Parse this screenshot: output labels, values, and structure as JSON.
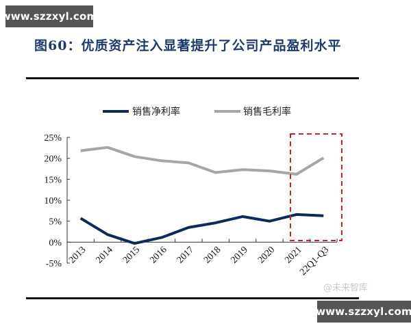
{
  "watermark": {
    "top": "www.szzxyl.com",
    "bottom": "www.szzxyl.com",
    "source": "@未来智库"
  },
  "title": "图60：优质资产注入显著提升了公司产品盈利水平",
  "colors": {
    "net_margin": "#0e2a5c",
    "gross_margin": "#a6a6a6",
    "highlight_box": "#c0242c",
    "title": "#1f3a6b"
  },
  "chart_data": {
    "type": "line",
    "title": "图60：优质资产注入显著提升了公司产品盈利水平",
    "xlabel": "",
    "ylabel": "",
    "categories": [
      "2013",
      "2014",
      "2015",
      "2016",
      "2017",
      "2018",
      "2019",
      "2020",
      "2021",
      "22Q1-Q3"
    ],
    "series": [
      {
        "name": "销售净利率",
        "color": "#0e2a5c",
        "values": [
          5.7,
          1.8,
          -0.3,
          1.1,
          3.5,
          4.6,
          6.1,
          5.0,
          6.6,
          6.3
        ]
      },
      {
        "name": "销售毛利率",
        "color": "#a6a6a6",
        "values": [
          21.8,
          22.6,
          20.4,
          19.4,
          18.9,
          16.6,
          17.3,
          17.0,
          16.2,
          20.1
        ]
      }
    ],
    "yticks": [
      "25%",
      "20%",
      "15%",
      "10%",
      "5%",
      "0%",
      "-5%"
    ],
    "ylim": [
      -5,
      25
    ],
    "grid": false,
    "legend_position": "top",
    "annotations": [
      {
        "type": "dashed-box",
        "color": "#c0242c",
        "covers": [
          "2021",
          "22Q1-Q3"
        ]
      }
    ]
  }
}
